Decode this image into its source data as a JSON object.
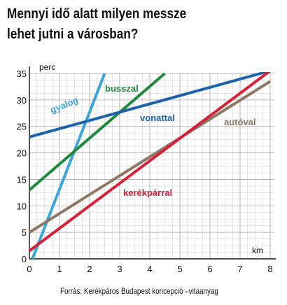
{
  "title_lines": [
    "Mennyi idő alatt milyen messze",
    "lehet jutni a városban?"
  ],
  "source": "Forrás: Kerékpáros Budapest koncepció –vitaanyag",
  "chart_data": {
    "type": "line",
    "title": "Mennyi idő alatt milyen messze lehet jutni a városban?",
    "xlabel": "km",
    "ylabel": "perc",
    "xlim": [
      0,
      8
    ],
    "ylim": [
      0,
      35
    ],
    "xticks": [
      0,
      1,
      2,
      3,
      4,
      5,
      6,
      7,
      8
    ],
    "yticks": [
      0,
      5,
      10,
      15,
      20,
      25,
      30,
      35
    ],
    "grid": true,
    "series": [
      {
        "name": "gyalog",
        "color": "#3aa6db",
        "x": [
          0.1,
          2.5
        ],
        "y": [
          0,
          35
        ]
      },
      {
        "name": "busszal",
        "color": "#1f8a3e",
        "x": [
          0,
          4.5
        ],
        "y": [
          13,
          35
        ]
      },
      {
        "name": "vonattal",
        "color": "#1f63a8",
        "x": [
          0,
          8
        ],
        "y": [
          23,
          35.5
        ]
      },
      {
        "name": "autóval",
        "color": "#8d7766",
        "x": [
          0,
          8
        ],
        "y": [
          5,
          33.5
        ]
      },
      {
        "name": "kerékpárral",
        "color": "#d6213a",
        "x": [
          0,
          8
        ],
        "y": [
          1.5,
          35.5
        ]
      }
    ]
  }
}
